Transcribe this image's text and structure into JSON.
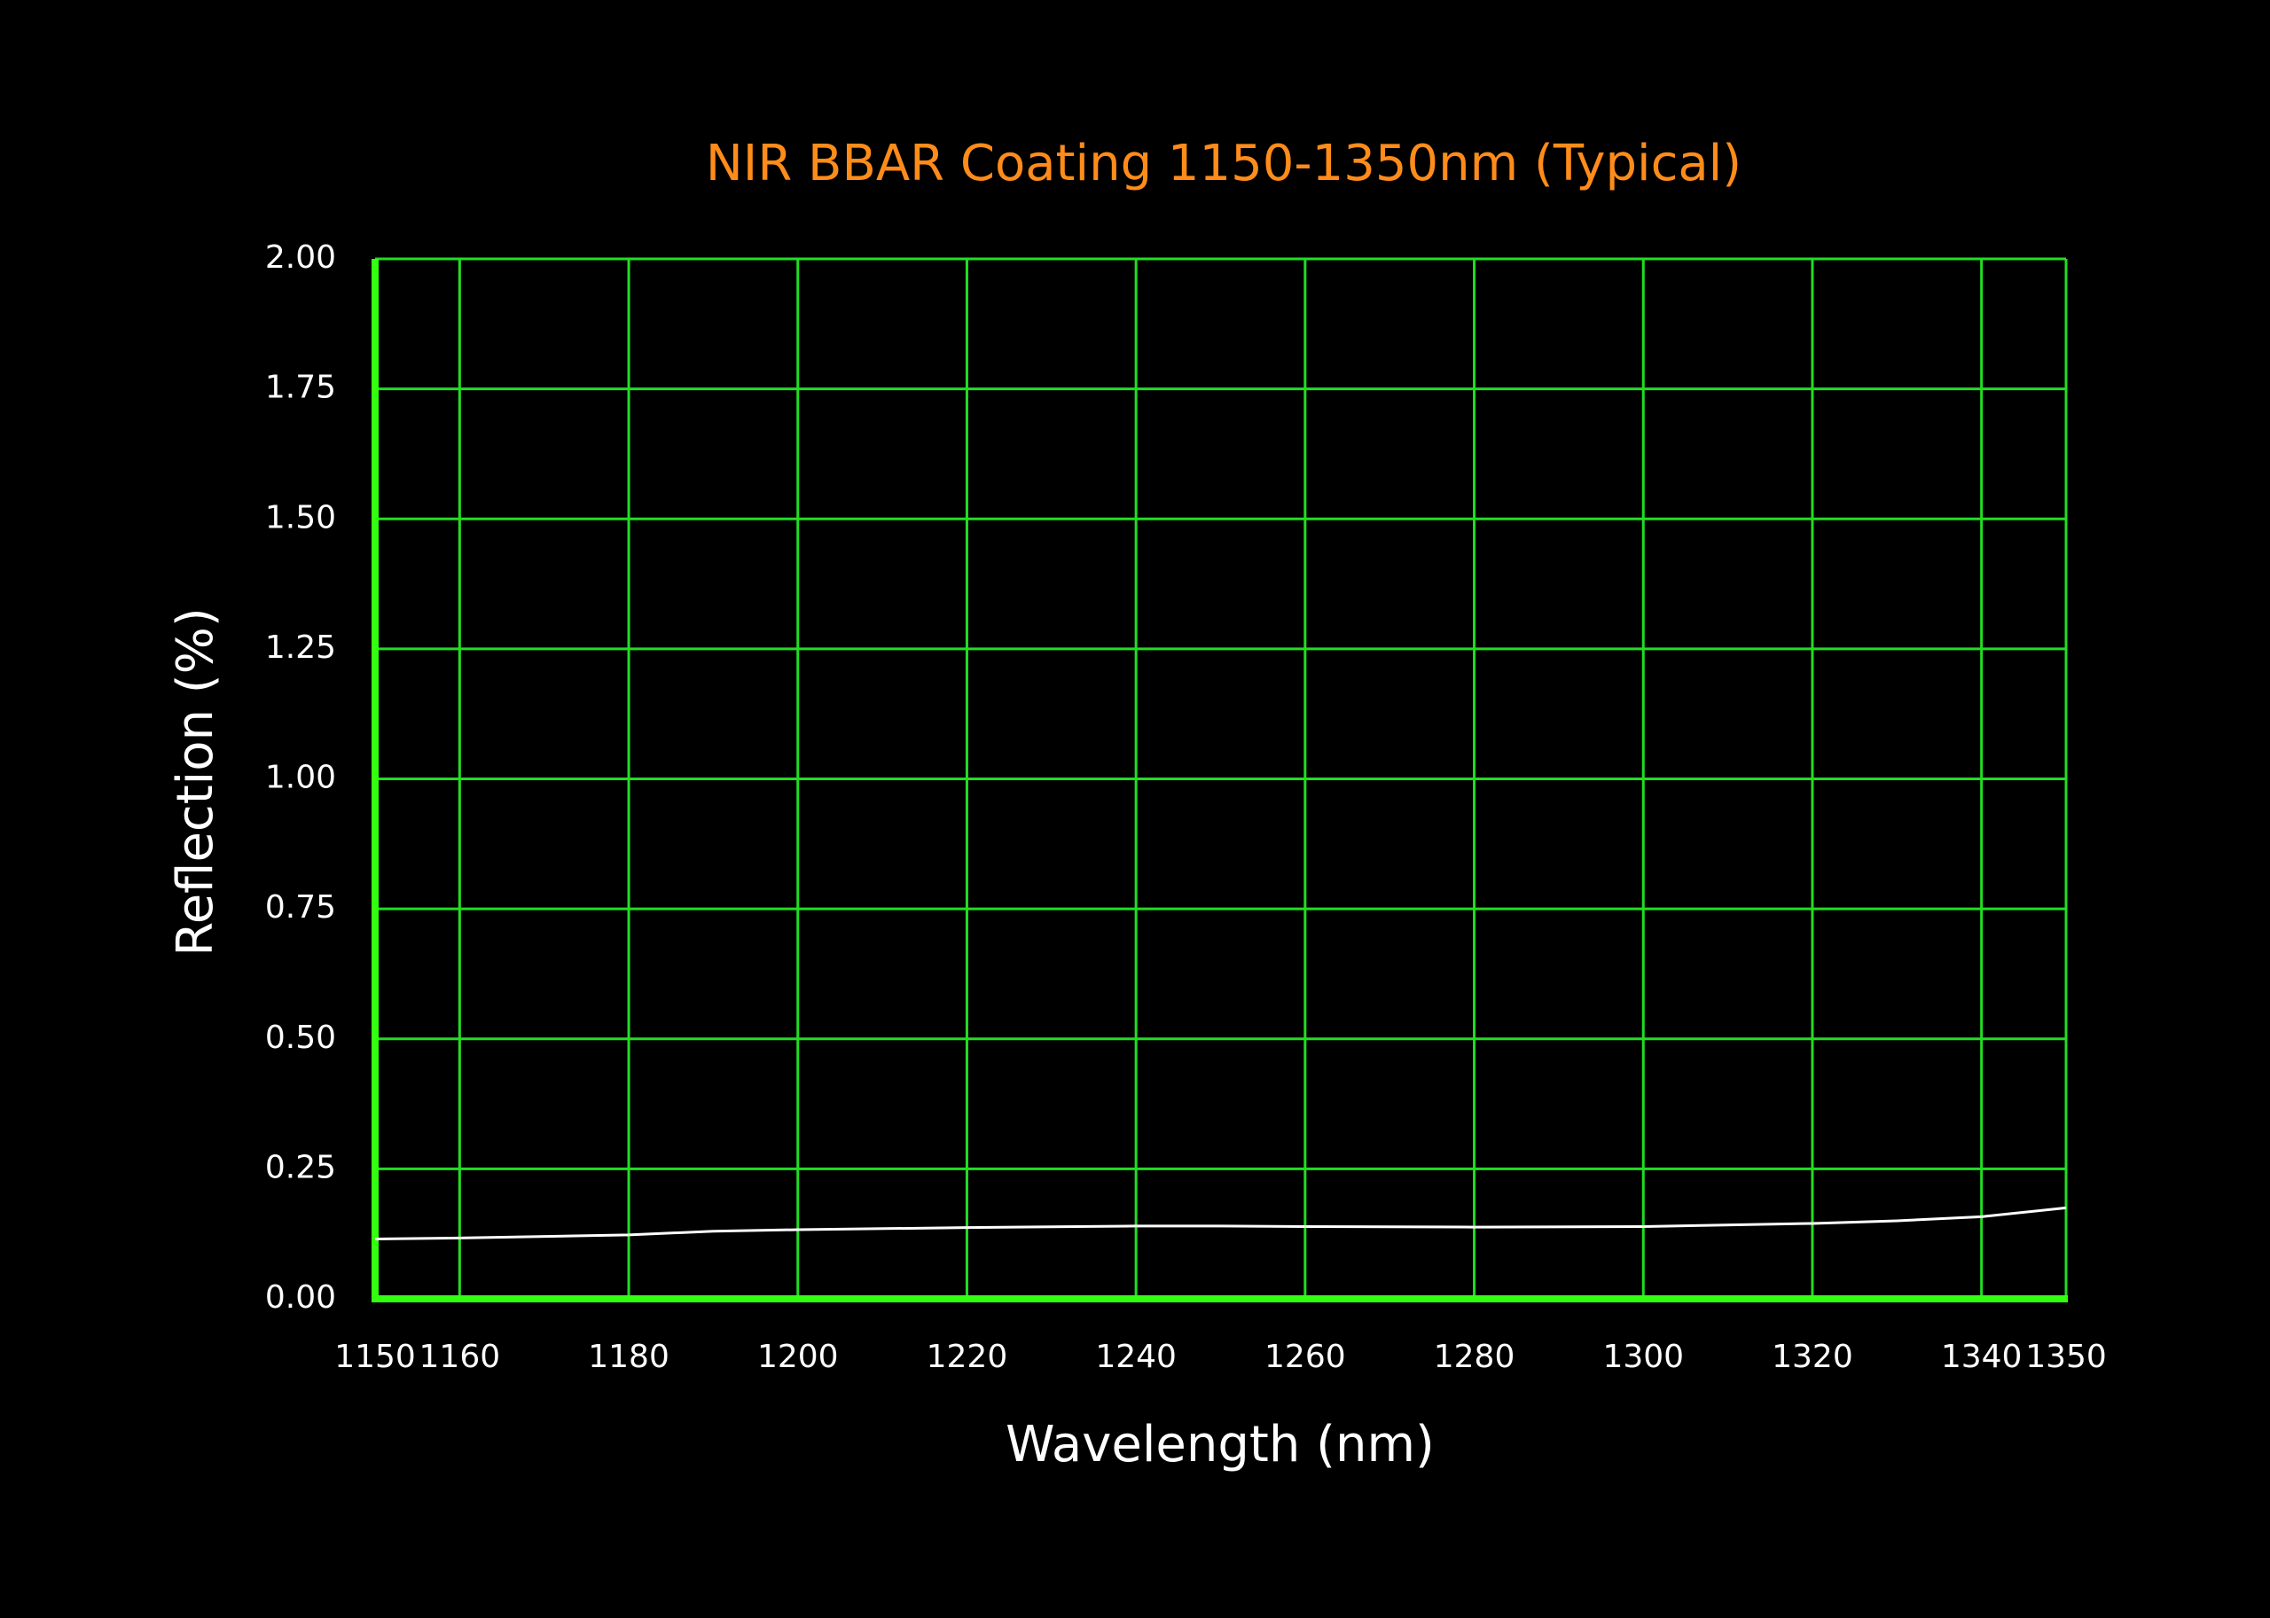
{
  "chart_data": {
    "type": "line",
    "title": "NIR BBAR Coating 1150-1350nm (Typical)",
    "x_label": "Wavelength (nm)",
    "y_label": "Reflection (%)",
    "x": [
      1150,
      1160,
      1180,
      1190,
      1200,
      1220,
      1240,
      1250,
      1260,
      1280,
      1300,
      1320,
      1330,
      1340,
      1350
    ],
    "values": [
      0.115,
      0.117,
      0.123,
      0.13,
      0.133,
      0.137,
      0.14,
      0.14,
      0.139,
      0.138,
      0.139,
      0.145,
      0.15,
      0.158,
      0.175
    ],
    "color": "#ffffff",
    "xlim": [
      1150,
      1350
    ],
    "xticks": [
      1150,
      1160,
      1180,
      1200,
      1220,
      1240,
      1260,
      1280,
      1300,
      1320,
      1340,
      1350
    ],
    "ylim": [
      0,
      2
    ],
    "yticks": [
      {
        "value": 0,
        "label": "0.00"
      },
      0.25,
      {
        "value": 0.5,
        "label": "0.50"
      },
      0.75,
      {
        "value": 1,
        "label": "1.00"
      },
      1.25,
      {
        "value": 1.5,
        "label": "1.50"
      },
      1.75,
      {
        "value": 2,
        "label": "2.00"
      }
    ],
    "grid": true,
    "grid_color": "#22dd22",
    "axis_color": "#33ff11",
    "title_color": "#ff8c1a"
  }
}
